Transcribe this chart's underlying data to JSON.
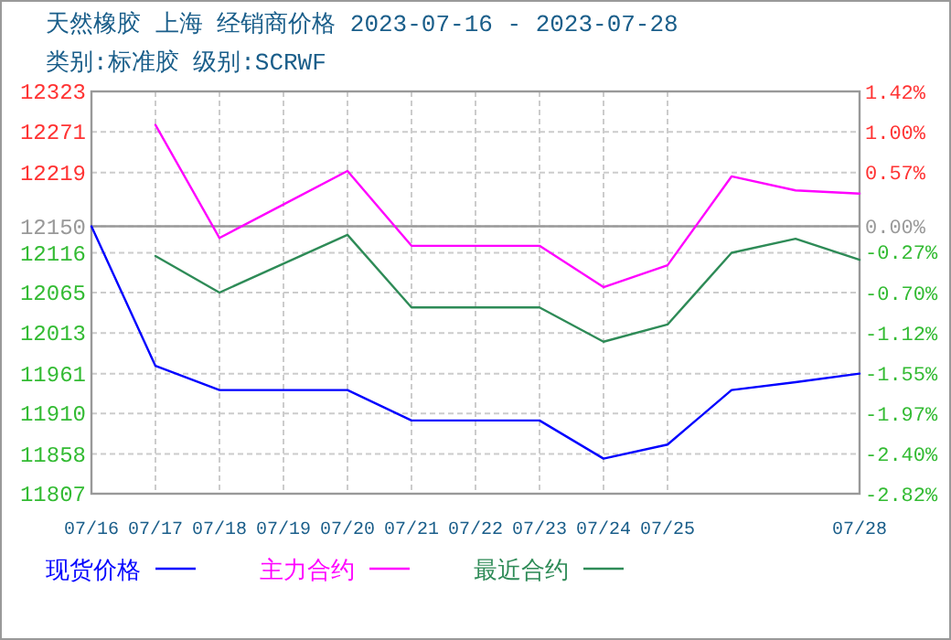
{
  "chart_data": {
    "type": "line",
    "title": "天然橡胶 上海 经销商价格 2023-07-16 - 2023-07-28",
    "subtitle": "类别:标准胶 级别:SCRWF",
    "x": [
      "2023-07-16",
      "2023-07-17",
      "2023-07-18",
      "2023-07-19",
      "2023-07-20",
      "2023-07-21",
      "2023-07-22",
      "2023-07-23",
      "2023-07-24",
      "2023-07-25",
      "2023-07-26",
      "2023-07-27",
      "2023-07-28"
    ],
    "xlim": [
      "2023-07-16",
      "2023-07-28"
    ],
    "xticks": [
      {
        "value": "2023-07-16",
        "label": "07/16"
      },
      {
        "value": "2023-07-17",
        "label": "07/17"
      },
      {
        "value": "2023-07-18",
        "label": "07/18"
      },
      {
        "value": "2023-07-19",
        "label": "07/19"
      },
      {
        "value": "2023-07-20",
        "label": "07/20"
      },
      {
        "value": "2023-07-21",
        "label": "07/21"
      },
      {
        "value": "2023-07-22",
        "label": "07/22"
      },
      {
        "value": "2023-07-23",
        "label": "07/23"
      },
      {
        "value": "2023-07-24",
        "label": "07/24"
      },
      {
        "value": "2023-07-25",
        "label": "07/25"
      },
      {
        "value": "2023-07-28",
        "label": "07/28"
      }
    ],
    "ylim": [
      11807,
      12323
    ],
    "yticks": [
      12323,
      12271,
      12219,
      12150,
      12116,
      12065,
      12013,
      11961,
      11910,
      11858,
      11807
    ],
    "y2lim": [
      -2.82,
      1.42
    ],
    "y2ticks": [
      {
        "value": 1.42,
        "label": "1.42%"
      },
      {
        "value": 1.0,
        "label": "1.00%"
      },
      {
        "value": 0.57,
        "label": "0.57%"
      },
      {
        "value": 0.0,
        "label": "0.00%"
      },
      {
        "value": -0.27,
        "label": "-0.27%"
      },
      {
        "value": -0.7,
        "label": "-0.70%"
      },
      {
        "value": -1.12,
        "label": "-1.12%"
      },
      {
        "value": -1.55,
        "label": "-1.55%"
      },
      {
        "value": -1.97,
        "label": "-1.97%"
      },
      {
        "value": -2.4,
        "label": "-2.40%"
      },
      {
        "value": -2.82,
        "label": "-2.82%"
      }
    ],
    "grid": true,
    "legend": "bottom",
    "marker": "none",
    "ref_lines": [
      {
        "axis": "y",
        "value": 12150,
        "color": "#999999"
      }
    ],
    "series": [
      {
        "name": "现货价格",
        "color": "#0000ff",
        "values": [
          12150,
          11971,
          11940,
          11940,
          11940,
          11901,
          11901,
          11901,
          11852,
          11870,
          11940,
          11950,
          11961
        ]
      },
      {
        "name": "主力合约",
        "color": "#ff00ff",
        "values": [
          null,
          12280,
          12135,
          12178,
          12221,
          12125,
          12125,
          12125,
          12072,
          12100,
          12214,
          12196,
          12192
        ]
      },
      {
        "name": "最近合约",
        "color": "#2e8b57",
        "values": [
          null,
          12112,
          12065,
          12102,
          12139,
          12046,
          12046,
          12046,
          12002,
          12024,
          12116,
          12134,
          12107
        ]
      }
    ]
  }
}
